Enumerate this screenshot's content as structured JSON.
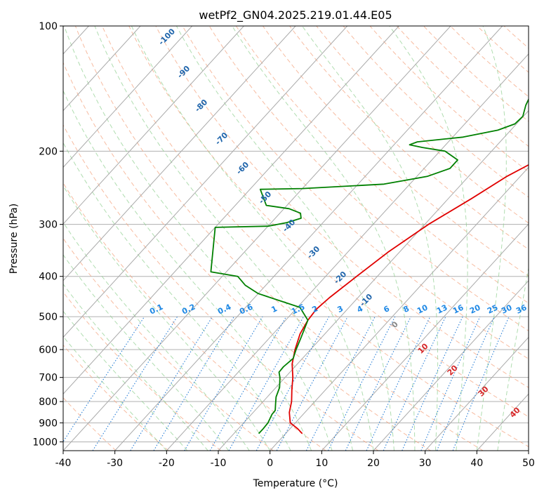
{
  "chart_data": {
    "type": "line",
    "title": "wetPf2_GN04.2025.219.01.44.E05",
    "xlabel": "Temperature (°C)",
    "ylabel": "Pressure (hPa)",
    "xlim": [
      -40,
      50
    ],
    "ylim": [
      1050,
      100
    ],
    "y_scale": "log",
    "x_ticks": [
      -40,
      -30,
      -20,
      -10,
      0,
      10,
      20,
      30,
      40,
      50
    ],
    "y_ticks": [
      100,
      200,
      300,
      400,
      500,
      600,
      700,
      800,
      900,
      1000
    ],
    "grid": true,
    "series": [
      {
        "name": "",
        "role": "temperature",
        "color": "#e00000",
        "points": [
          [
            3.2,
            955
          ],
          [
            1.5,
            930
          ],
          [
            -1.0,
            900
          ],
          [
            -3.0,
            850
          ],
          [
            -4.5,
            800
          ],
          [
            -6.5,
            750
          ],
          [
            -8.5,
            700
          ],
          [
            -11.0,
            650
          ],
          [
            -13.0,
            600
          ],
          [
            -14.8,
            550
          ],
          [
            -15.7,
            510
          ],
          [
            -16.0,
            480
          ],
          [
            -15.5,
            450
          ],
          [
            -14.0,
            400
          ],
          [
            -12.2,
            350
          ],
          [
            -9.3,
            300
          ],
          [
            -5.5,
            260
          ],
          [
            -2.6,
            230
          ],
          [
            0.5,
            210
          ],
          [
            4.0,
            200
          ],
          [
            9.0,
            190
          ],
          [
            11.5,
            175
          ],
          [
            13.0,
            160
          ],
          [
            16.0,
            145
          ],
          [
            20.0,
            130
          ],
          [
            24.5,
            115
          ],
          [
            28.0,
            100
          ]
        ]
      },
      {
        "name": "",
        "role": "dewpoint",
        "color": "#008000",
        "points": [
          [
            -5.2,
            955
          ],
          [
            -5.2,
            930
          ],
          [
            -5.3,
            900
          ],
          [
            -6.0,
            860
          ],
          [
            -6.1,
            840
          ],
          [
            -7.2,
            810
          ],
          [
            -8.3,
            780
          ],
          [
            -9.3,
            740
          ],
          [
            -11.0,
            700
          ],
          [
            -12.1,
            680
          ],
          [
            -12.2,
            660
          ],
          [
            -11.8,
            630
          ],
          [
            -12.8,
            600
          ],
          [
            -14.0,
            560
          ],
          [
            -15.7,
            510
          ],
          [
            -19.5,
            475
          ],
          [
            -30.0,
            440
          ],
          [
            -34.0,
            420
          ],
          [
            -37.0,
            400
          ],
          [
            -43.0,
            390
          ],
          [
            -50.0,
            305
          ],
          [
            -40.0,
            303
          ],
          [
            -37.0,
            297
          ],
          [
            -35.0,
            290
          ],
          [
            -36.0,
            282
          ],
          [
            -39.0,
            275
          ],
          [
            -44.0,
            270
          ],
          [
            -48.0,
            247
          ],
          [
            -40.0,
            246
          ],
          [
            -25.0,
            240
          ],
          [
            -18.0,
            230
          ],
          [
            -15.0,
            220
          ],
          [
            -15.0,
            210
          ],
          [
            -19.0,
            200
          ],
          [
            -24.0,
            196
          ],
          [
            -27.0,
            193
          ],
          [
            -26.0,
            190
          ],
          [
            -18.0,
            185
          ],
          [
            -12.5,
            178
          ],
          [
            -10.3,
            172
          ],
          [
            -10.1,
            165
          ],
          [
            -11.5,
            155
          ],
          [
            -12.5,
            145
          ],
          [
            -11.8,
            135
          ],
          [
            -9.5,
            128
          ],
          [
            -6.5,
            122
          ],
          [
            -4.0,
            115
          ],
          [
            -2.2,
            108
          ],
          [
            -1.0,
            100
          ]
        ]
      }
    ],
    "isotherm_labels": [
      "-100",
      "-90",
      "-80",
      "-70",
      "-60",
      "-50",
      "-40",
      "-30",
      "-20",
      "-10"
    ],
    "mixing_ratio_labels": [
      "0.1",
      "0.2",
      "0.4",
      "0.6",
      "1",
      "1.5",
      "2",
      "3",
      "4",
      "6",
      "8",
      "10",
      "13",
      "16",
      "20",
      "25",
      "30",
      "36"
    ],
    "mixing_ratio_values": [
      0.1,
      0.2,
      0.4,
      0.6,
      1,
      1.5,
      2,
      3,
      4,
      6,
      8,
      10,
      13,
      16,
      20,
      25,
      30,
      36
    ],
    "wet_bulb_labels": [
      "0",
      "10",
      "20",
      "30",
      "40"
    ],
    "colors": {
      "grid": "#b0b0b0",
      "skewed_isotherm": "#aaaaaa",
      "dry_adiabat": "#f4a582",
      "moist_adiabat": "#8fcf8f",
      "mixing_ratio": "#2a7fd6",
      "iso_label": "#2166ac",
      "mixing_label": "#1e88e5",
      "wet_label": "#d62728",
      "zero_label": "#888888"
    }
  }
}
